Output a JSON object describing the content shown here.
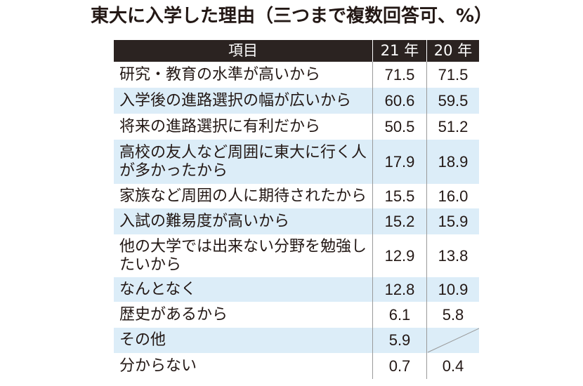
{
  "colors": {
    "header_bg": "#2b2321",
    "header_text": "#ffffff",
    "band": "#dcedf8",
    "divider": "#9a9a9a",
    "text": "#231815"
  },
  "chart_data": {
    "type": "table",
    "title": "東大に入学した理由（三つまで複数回答可、%）",
    "columns": [
      "項目",
      "21 年",
      "20 年"
    ],
    "rows": [
      {
        "item": "研究・教育の水準が高いから",
        "y21": "71.5",
        "y20": "71.5"
      },
      {
        "item": "入学後の進路選択の幅が広いから",
        "y21": "60.6",
        "y20": "59.5"
      },
      {
        "item": "将来の進路選択に有利だから",
        "y21": "50.5",
        "y20": "51.2"
      },
      {
        "item": "高校の友人など周囲に東大に行く人が多かったから",
        "y21": "17.9",
        "y20": "18.9"
      },
      {
        "item": "家族など周囲の人に期待されたから",
        "y21": "15.5",
        "y20": "16.0"
      },
      {
        "item": "入試の難易度が高いから",
        "y21": "15.2",
        "y20": "15.9"
      },
      {
        "item": "他の大学では出来ない分野を勉強したいから",
        "y21": "12.9",
        "y20": "13.8"
      },
      {
        "item": "なんとなく",
        "y21": "12.8",
        "y20": "10.9"
      },
      {
        "item": "歴史があるから",
        "y21": "6.1",
        "y20": "5.8"
      },
      {
        "item": "その他",
        "y21": "5.9",
        "y20": null
      },
      {
        "item": "分からない",
        "y21": "0.7",
        "y20": "0.4"
      }
    ]
  }
}
